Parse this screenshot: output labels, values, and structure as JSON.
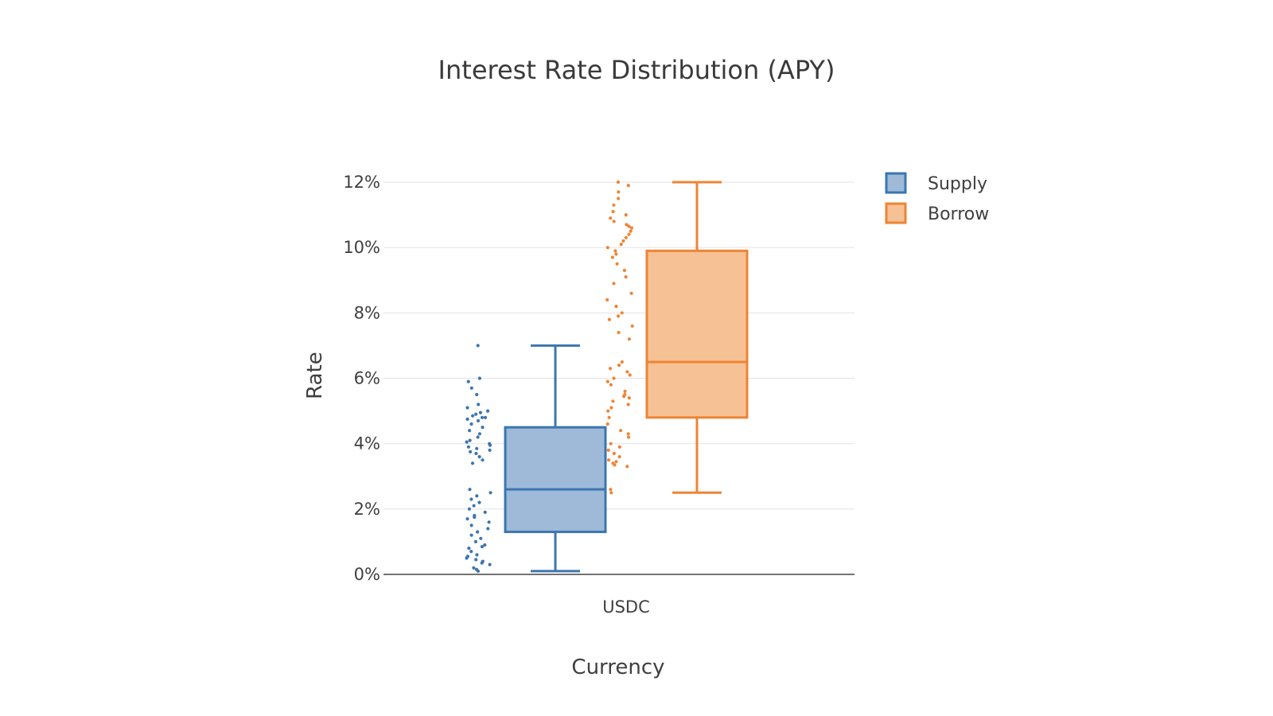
{
  "colors": {
    "supply_line": "#3b76b0",
    "supply_fill": "#9ebad8",
    "borrow_line": "#ee8435",
    "borrow_fill": "#f6c295",
    "grid": "#e6e6e6",
    "text": "#3f3f3f"
  },
  "chart_data": {
    "type": "box",
    "title": "Interest Rate Distribution (APY)",
    "xlabel": "Currency",
    "ylabel": "Rate",
    "categories": [
      "USDC"
    ],
    "ylim": [
      0,
      12
    ],
    "y_ticks": [
      0,
      2,
      4,
      6,
      8,
      10,
      12
    ],
    "y_tick_labels": [
      "0%",
      "2%",
      "4%",
      "6%",
      "8%",
      "10%",
      "12%"
    ],
    "grid": true,
    "legend_position": "top-right",
    "boxpoints": "all",
    "series": [
      {
        "name": "Supply",
        "category": "USDC",
        "min": 0.1,
        "q1": 1.3,
        "median": 2.6,
        "q3": 4.5,
        "max": 7.0,
        "points": [
          7.0,
          6.0,
          5.9,
          5.7,
          5.5,
          5.2,
          5.1,
          5.0,
          4.95,
          4.9,
          4.85,
          4.8,
          4.8,
          4.75,
          4.7,
          4.6,
          4.5,
          4.4,
          4.3,
          4.2,
          4.1,
          4.05,
          4.0,
          3.95,
          3.9,
          3.85,
          3.8,
          3.75,
          3.7,
          3.6,
          3.5,
          3.4,
          2.6,
          2.5,
          2.4,
          2.3,
          2.2,
          2.1,
          2.0,
          1.9,
          1.8,
          1.75,
          1.7,
          1.6,
          1.5,
          1.4,
          1.3,
          1.2,
          1.1,
          1.0,
          0.9,
          0.85,
          0.8,
          0.7,
          0.6,
          0.55,
          0.5,
          0.45,
          0.4,
          0.35,
          0.3,
          0.2,
          0.15,
          0.1
        ]
      },
      {
        "name": "Borrow",
        "category": "USDC",
        "min": 2.5,
        "q1": 4.8,
        "median": 6.5,
        "q3": 9.9,
        "max": 12.0,
        "points": [
          12.0,
          11.9,
          11.7,
          11.5,
          11.3,
          11.1,
          11.0,
          10.9,
          10.8,
          10.7,
          10.65,
          10.6,
          10.5,
          10.4,
          10.3,
          10.2,
          10.1,
          10.0,
          9.9,
          9.8,
          9.7,
          9.5,
          9.3,
          9.1,
          8.9,
          8.6,
          8.4,
          8.2,
          8.0,
          7.9,
          7.8,
          7.6,
          7.4,
          7.2,
          6.5,
          6.4,
          6.3,
          6.2,
          6.1,
          6.0,
          5.9,
          5.8,
          5.6,
          5.5,
          5.45,
          5.4,
          5.3,
          5.2,
          5.1,
          5.0,
          4.8,
          4.6,
          4.4,
          4.3,
          4.2,
          4.0,
          3.9,
          3.8,
          3.7,
          3.6,
          3.5,
          3.45,
          3.4,
          3.35,
          3.3,
          2.6,
          2.5
        ]
      }
    ]
  }
}
